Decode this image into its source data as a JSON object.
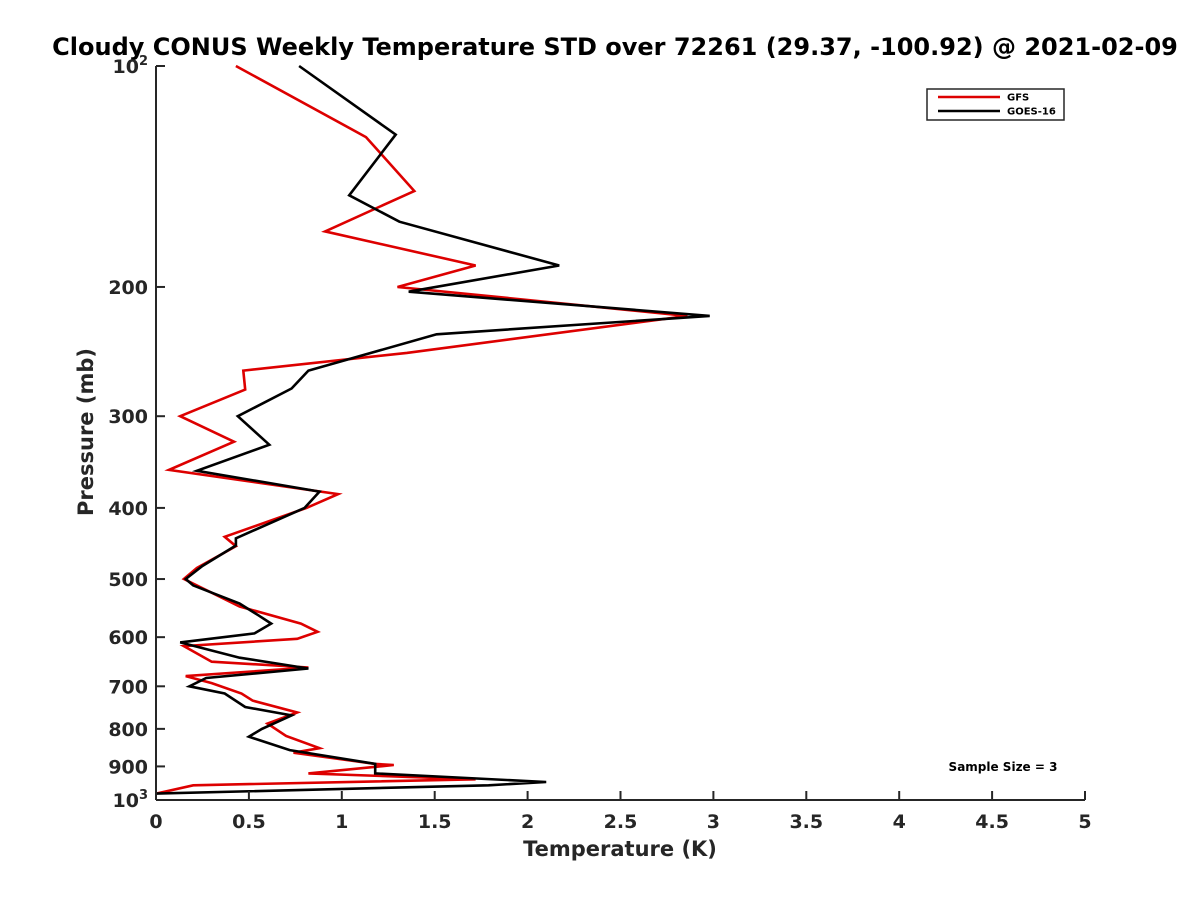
{
  "chart_data": {
    "type": "line",
    "title": "Cloudy CONUS Weekly Temperature STD over 72261 (29.37, -100.92) @ 2021-02-09",
    "xlabel": "Temperature (K)",
    "ylabel": "Pressure (mb)",
    "xlim": [
      0,
      5
    ],
    "ylim": [
      100,
      1000
    ],
    "y_scale": "log",
    "y_reversed": true,
    "grid": false,
    "legend_position": "top-right",
    "x_ticks": [
      "0",
      "0.5",
      "1",
      "1.5",
      "2",
      "2.5",
      "3",
      "3.5",
      "4",
      "4.5",
      "5"
    ],
    "x_tick_values": [
      0,
      0.5,
      1,
      1.5,
      2,
      2.5,
      3,
      3.5,
      4,
      4.5,
      5
    ],
    "y_ticks": [
      {
        "value": 100,
        "label": "10",
        "sup": "2"
      },
      {
        "value": 200,
        "label": "200",
        "sup": ""
      },
      {
        "value": 300,
        "label": "300",
        "sup": ""
      },
      {
        "value": 400,
        "label": "400",
        "sup": ""
      },
      {
        "value": 500,
        "label": "500",
        "sup": ""
      },
      {
        "value": 600,
        "label": "600",
        "sup": ""
      },
      {
        "value": 700,
        "label": "700",
        "sup": ""
      },
      {
        "value": 800,
        "label": "800",
        "sup": ""
      },
      {
        "value": 900,
        "label": "900",
        "sup": ""
      },
      {
        "value": 1000,
        "label": "10",
        "sup": "3"
      }
    ],
    "annotation": "Sample Size = 3",
    "series": [
      {
        "name": "GFS",
        "color": "#dd0000",
        "points": [
          [
            0.43,
            100
          ],
          [
            1.13,
            125
          ],
          [
            1.39,
            148
          ],
          [
            0.91,
            168
          ],
          [
            1.72,
            187
          ],
          [
            1.3,
            200
          ],
          [
            2.86,
            219
          ],
          [
            1.35,
            246
          ],
          [
            0.47,
            260
          ],
          [
            0.48,
            276
          ],
          [
            0.13,
            300
          ],
          [
            0.42,
            325
          ],
          [
            0.07,
            355
          ],
          [
            0.98,
            383
          ],
          [
            0.81,
            400
          ],
          [
            0.37,
            438
          ],
          [
            0.43,
            451
          ],
          [
            0.22,
            483
          ],
          [
            0.15,
            500
          ],
          [
            0.45,
            545
          ],
          [
            0.78,
            575
          ],
          [
            0.87,
            590
          ],
          [
            0.76,
            603
          ],
          [
            0.15,
            617
          ],
          [
            0.3,
            648
          ],
          [
            0.82,
            660
          ],
          [
            0.16,
            678
          ],
          [
            0.3,
            693
          ],
          [
            0.46,
            716
          ],
          [
            0.52,
            732
          ],
          [
            0.76,
            760
          ],
          [
            0.6,
            787
          ],
          [
            0.7,
            818
          ],
          [
            0.88,
            850
          ],
          [
            0.74,
            862
          ],
          [
            1.18,
            893
          ],
          [
            1.28,
            896
          ],
          [
            0.82,
            920
          ],
          [
            1.72,
            937
          ],
          [
            0.2,
            955
          ],
          [
            0.0,
            980
          ]
        ]
      },
      {
        "name": "GOES-16",
        "color": "#000000",
        "points": [
          [
            0.77,
            100
          ],
          [
            1.29,
            124
          ],
          [
            1.04,
            150
          ],
          [
            1.31,
            163
          ],
          [
            2.17,
            187
          ],
          [
            1.36,
            203
          ],
          [
            2.98,
            219
          ],
          [
            1.51,
            232
          ],
          [
            0.82,
            260
          ],
          [
            0.73,
            275
          ],
          [
            0.44,
            300
          ],
          [
            0.61,
            328
          ],
          [
            0.22,
            356
          ],
          [
            0.88,
            380
          ],
          [
            0.8,
            400
          ],
          [
            0.43,
            440
          ],
          [
            0.43,
            450
          ],
          [
            0.25,
            480
          ],
          [
            0.16,
            500
          ],
          [
            0.2,
            510
          ],
          [
            0.45,
            540
          ],
          [
            0.55,
            560
          ],
          [
            0.62,
            575
          ],
          [
            0.53,
            593
          ],
          [
            0.13,
            610
          ],
          [
            0.45,
            640
          ],
          [
            0.82,
            662
          ],
          [
            0.27,
            682
          ],
          [
            0.18,
            700
          ],
          [
            0.37,
            716
          ],
          [
            0.48,
            747
          ],
          [
            0.73,
            767
          ],
          [
            0.57,
            800
          ],
          [
            0.5,
            820
          ],
          [
            0.72,
            855
          ],
          [
            1.18,
            893
          ],
          [
            1.18,
            920
          ],
          [
            2.1,
            945
          ],
          [
            1.79,
            955
          ],
          [
            0.0,
            980
          ]
        ]
      }
    ]
  }
}
